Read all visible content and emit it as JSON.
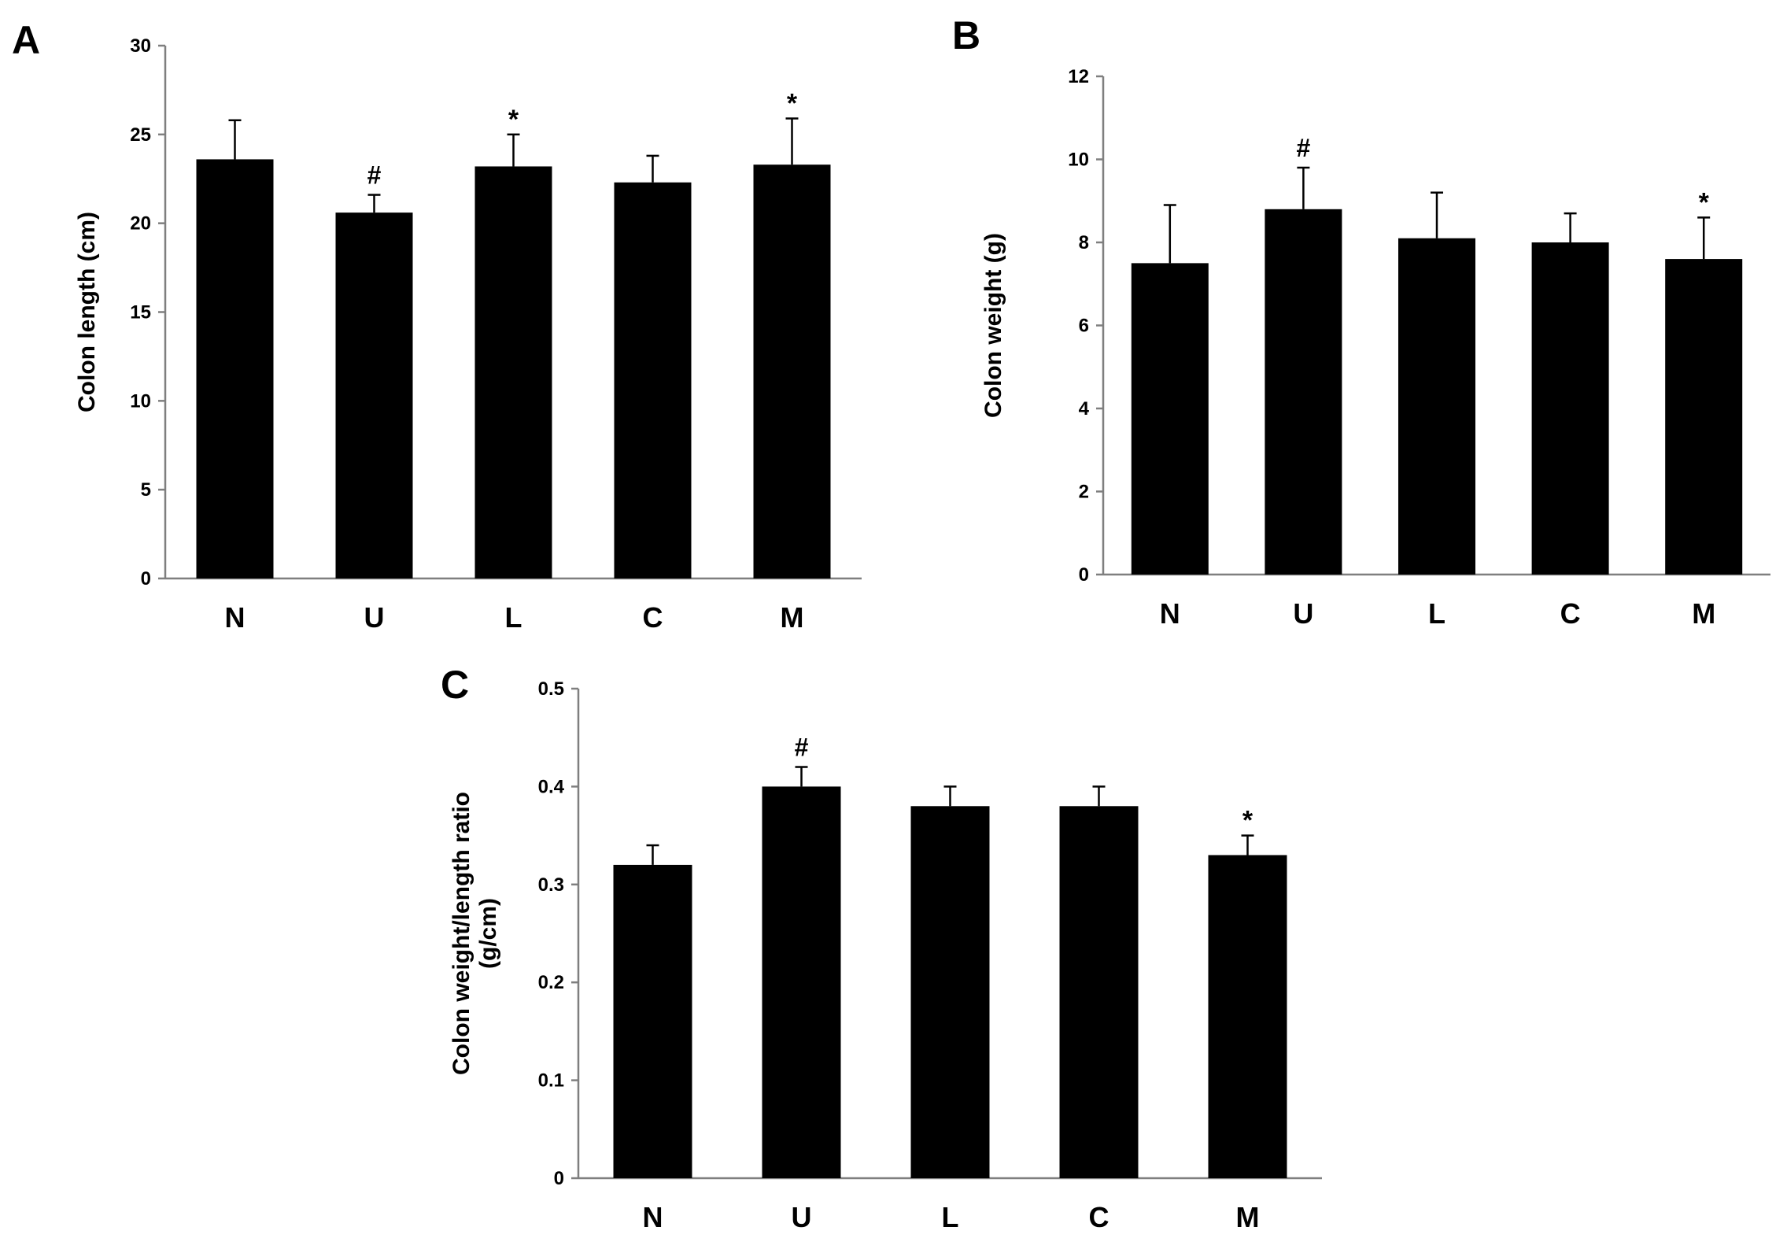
{
  "colors": {
    "bar": "#000000",
    "axis": "#7f7f7f",
    "error_bar": "#000000"
  },
  "chart_data": [
    {
      "type": "bar",
      "panel": "A",
      "categories": [
        "N",
        "U",
        "L",
        "C",
        "M"
      ],
      "values": [
        23.6,
        20.6,
        23.2,
        22.3,
        23.3
      ],
      "errors": [
        2.2,
        1.0,
        1.8,
        1.5,
        2.6
      ],
      "annotations": [
        "",
        "#",
        "*",
        "",
        "*"
      ],
      "ylabel": "Colon length (cm)",
      "ylim": [
        0,
        30
      ],
      "yticks": [
        0,
        5,
        10,
        15,
        20,
        25,
        30
      ]
    },
    {
      "type": "bar",
      "panel": "B",
      "categories": [
        "N",
        "U",
        "L",
        "C",
        "M"
      ],
      "values": [
        7.5,
        8.8,
        8.1,
        8.0,
        7.6
      ],
      "errors": [
        1.4,
        1.0,
        1.1,
        0.7,
        1.0
      ],
      "annotations": [
        "",
        "#",
        "",
        "",
        "*"
      ],
      "ylabel": "Colon weight (g)",
      "ylim": [
        0,
        12
      ],
      "yticks": [
        0,
        2,
        4,
        6,
        8,
        10,
        12
      ]
    },
    {
      "type": "bar",
      "panel": "C",
      "categories": [
        "N",
        "U",
        "L",
        "C",
        "M"
      ],
      "values": [
        0.32,
        0.4,
        0.38,
        0.38,
        0.33
      ],
      "errors": [
        0.02,
        0.02,
        0.02,
        0.02,
        0.02
      ],
      "annotations": [
        "",
        "#",
        "",
        "",
        "*"
      ],
      "ylabel": "Colon weight/length ratio",
      "ylabel2": "(g/cm)",
      "ylim": [
        0,
        0.5
      ],
      "yticks": [
        "0",
        "0.1",
        "0.2",
        "0.3",
        "0.4",
        "0.5"
      ]
    }
  ]
}
